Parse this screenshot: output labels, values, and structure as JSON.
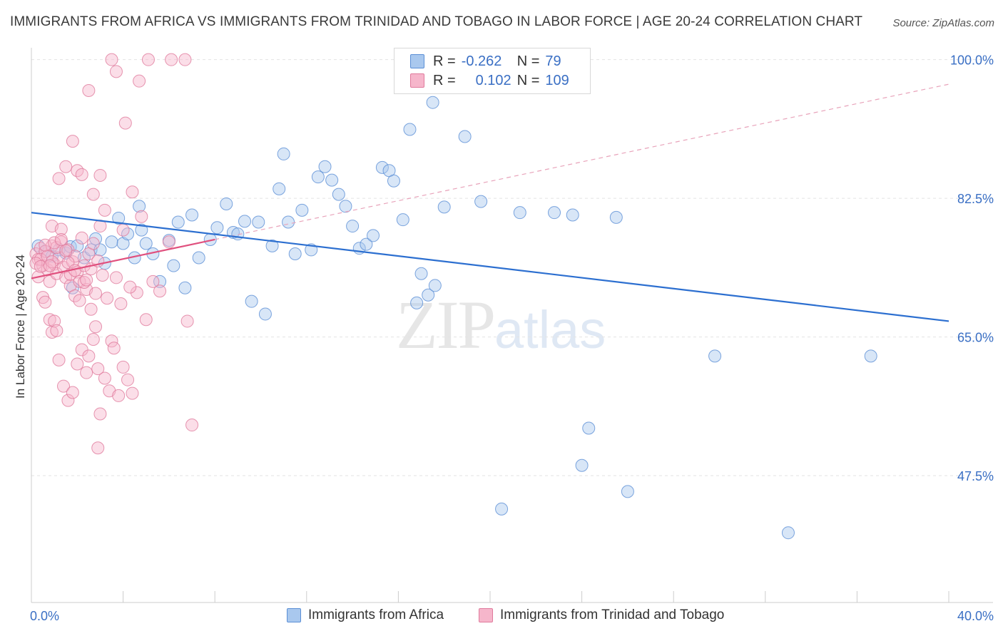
{
  "title": "IMMIGRANTS FROM AFRICA VS IMMIGRANTS FROM TRINIDAD AND TOBAGO IN LABOR FORCE | AGE 20-24 CORRELATION CHART",
  "source": "Source: ZipAtlas.com",
  "watermark": {
    "zip": "ZIP",
    "atlas": "atlas"
  },
  "legend": {
    "africa": {
      "r_label": "R =",
      "r_value": "-0.262",
      "n_label": "N =",
      "n_value": "79"
    },
    "trinidad": {
      "r_label": "R =",
      "r_value": "0.102",
      "n_label": "N =",
      "n_value": "109"
    }
  },
  "colors": {
    "africa_fill": "#a9c8ee",
    "africa_stroke": "#5b8fd6",
    "africa_line": "#2c6fd0",
    "trinidad_fill": "#f6b6cb",
    "trinidad_stroke": "#e07a9c",
    "trinidad_line": "#e0507e",
    "tick_label": "#3a6fc4",
    "grid": "#e3e3e3"
  },
  "chart_data": {
    "type": "scatter",
    "title": "IMMIGRANTS FROM AFRICA VS IMMIGRANTS FROM TRINIDAD AND TOBAGO IN LABOR FORCE | AGE 20-24 CORRELATION CHART",
    "xlabel": "",
    "ylabel": "In Labor Force | Age 20-24",
    "xlim": [
      0,
      40
    ],
    "ylim": [
      31.5,
      101.5
    ],
    "x_tick_labels": [
      "0.0%",
      "40.0%"
    ],
    "y_ticks": [
      47.5,
      65.0,
      82.5,
      100.0
    ],
    "y_tick_labels": [
      "47.5%",
      "65.0%",
      "82.5%",
      "100.0%"
    ],
    "grid": true,
    "legend_position": "top-center",
    "series": [
      {
        "name": "Immigrants from Africa",
        "trend": {
          "x": [
            0,
            40
          ],
          "y": [
            80.7,
            67.0
          ]
        },
        "points": [
          [
            0.3,
            76.5
          ],
          [
            0.6,
            75.8
          ],
          [
            0.9,
            75.2
          ],
          [
            1.2,
            76.0
          ],
          [
            1.5,
            75.6
          ],
          [
            1.7,
            76.4
          ],
          [
            1.8,
            71.2
          ],
          [
            2.3,
            75.0
          ],
          [
            2.6,
            76.0
          ],
          [
            2.8,
            77.4
          ],
          [
            3.2,
            74.3
          ],
          [
            3.5,
            77.0
          ],
          [
            3.8,
            80.0
          ],
          [
            4.0,
            76.8
          ],
          [
            4.2,
            78.0
          ],
          [
            4.5,
            75.0
          ],
          [
            4.8,
            78.5
          ],
          [
            5.0,
            76.8
          ],
          [
            5.3,
            75.5
          ],
          [
            5.6,
            72.0
          ],
          [
            6.0,
            77.2
          ],
          [
            6.2,
            74.0
          ],
          [
            6.4,
            79.5
          ],
          [
            6.7,
            71.2
          ],
          [
            7.0,
            80.4
          ],
          [
            7.3,
            75.0
          ],
          [
            7.8,
            77.3
          ],
          [
            8.1,
            78.8
          ],
          [
            8.5,
            81.8
          ],
          [
            8.8,
            78.2
          ],
          [
            9.0,
            78.0
          ],
          [
            9.3,
            79.6
          ],
          [
            9.6,
            69.5
          ],
          [
            9.9,
            79.5
          ],
          [
            10.2,
            67.9
          ],
          [
            10.5,
            76.5
          ],
          [
            10.8,
            83.7
          ],
          [
            11.0,
            88.1
          ],
          [
            11.2,
            79.5
          ],
          [
            11.5,
            75.5
          ],
          [
            11.8,
            81.0
          ],
          [
            12.2,
            76.0
          ],
          [
            12.5,
            85.2
          ],
          [
            12.8,
            86.5
          ],
          [
            13.1,
            84.8
          ],
          [
            13.4,
            83.0
          ],
          [
            13.7,
            81.5
          ],
          [
            14.0,
            79.0
          ],
          [
            14.3,
            76.2
          ],
          [
            14.6,
            76.7
          ],
          [
            14.9,
            77.8
          ],
          [
            15.3,
            86.4
          ],
          [
            15.6,
            86.0
          ],
          [
            15.8,
            84.7
          ],
          [
            16.2,
            79.8
          ],
          [
            16.5,
            91.2
          ],
          [
            16.8,
            69.3
          ],
          [
            17.0,
            73.0
          ],
          [
            17.3,
            70.3
          ],
          [
            17.6,
            71.5
          ],
          [
            17.5,
            94.6
          ],
          [
            18.0,
            81.4
          ],
          [
            18.9,
            90.3
          ],
          [
            19.6,
            82.1
          ],
          [
            21.3,
            80.7
          ],
          [
            22.8,
            80.7
          ],
          [
            23.6,
            80.4
          ],
          [
            25.5,
            80.1
          ],
          [
            24.3,
            53.5
          ],
          [
            24.0,
            48.8
          ],
          [
            26.0,
            45.5
          ],
          [
            29.8,
            62.6
          ],
          [
            33.0,
            40.3
          ],
          [
            36.6,
            62.6
          ],
          [
            20.5,
            43.3
          ],
          [
            22.0,
            100.2
          ],
          [
            4.7,
            81.5
          ],
          [
            2.0,
            76.5
          ],
          [
            3.0,
            76.0
          ]
        ]
      },
      {
        "name": "Immigrants from Trinidad and Tobago",
        "trend": {
          "x": [
            0,
            8
          ],
          "y": [
            72.4,
            77.3
          ]
        },
        "points": [
          [
            0.2,
            75.5
          ],
          [
            0.3,
            74.8
          ],
          [
            0.4,
            76.2
          ],
          [
            0.5,
            74.0
          ],
          [
            0.6,
            75.8
          ],
          [
            0.7,
            73.5
          ],
          [
            0.8,
            72.0
          ],
          [
            0.9,
            76.5
          ],
          [
            1.0,
            74.2
          ],
          [
            1.1,
            73.0
          ],
          [
            1.2,
            75.0
          ],
          [
            1.3,
            77.0
          ],
          [
            1.4,
            73.8
          ],
          [
            1.5,
            72.5
          ],
          [
            1.6,
            76.0
          ],
          [
            1.7,
            71.5
          ],
          [
            1.8,
            74.5
          ],
          [
            1.9,
            75.2
          ],
          [
            2.0,
            73.2
          ],
          [
            2.1,
            72.0
          ],
          [
            2.2,
            77.5
          ],
          [
            2.3,
            74.0
          ],
          [
            2.4,
            71.0
          ],
          [
            2.5,
            75.5
          ],
          [
            2.6,
            73.6
          ],
          [
            2.7,
            76.8
          ],
          [
            2.8,
            70.5
          ],
          [
            2.9,
            74.6
          ],
          [
            3.0,
            79.0
          ],
          [
            3.1,
            72.8
          ],
          [
            0.3,
            72.6
          ],
          [
            0.5,
            70.0
          ],
          [
            0.6,
            69.4
          ],
          [
            0.8,
            67.2
          ],
          [
            0.9,
            65.6
          ],
          [
            1.0,
            67.0
          ],
          [
            1.1,
            65.8
          ],
          [
            1.2,
            62.1
          ],
          [
            1.4,
            58.8
          ],
          [
            1.6,
            57.0
          ],
          [
            1.8,
            58.0
          ],
          [
            2.0,
            61.6
          ],
          [
            2.2,
            63.4
          ],
          [
            2.4,
            60.5
          ],
          [
            2.5,
            62.6
          ],
          [
            2.7,
            64.7
          ],
          [
            2.9,
            61.0
          ],
          [
            3.0,
            55.3
          ],
          [
            3.2,
            59.8
          ],
          [
            3.4,
            58.2
          ],
          [
            3.5,
            64.5
          ],
          [
            3.6,
            63.6
          ],
          [
            3.8,
            57.6
          ],
          [
            4.0,
            61.2
          ],
          [
            4.2,
            59.6
          ],
          [
            4.4,
            57.9
          ],
          [
            4.6,
            70.6
          ],
          [
            5.0,
            67.2
          ],
          [
            5.3,
            72.0
          ],
          [
            5.6,
            70.8
          ],
          [
            0.9,
            79.0
          ],
          [
            1.2,
            85.0
          ],
          [
            1.5,
            86.5
          ],
          [
            1.8,
            89.7
          ],
          [
            2.0,
            86.0
          ],
          [
            2.2,
            85.5
          ],
          [
            2.5,
            96.1
          ],
          [
            2.7,
            83.0
          ],
          [
            3.0,
            85.4
          ],
          [
            3.2,
            81.0
          ],
          [
            3.5,
            100.0
          ],
          [
            3.7,
            98.5
          ],
          [
            4.1,
            92.0
          ],
          [
            4.7,
            97.3
          ],
          [
            5.1,
            100.0
          ],
          [
            6.1,
            100.0
          ],
          [
            6.7,
            100.0
          ],
          [
            4.4,
            83.3
          ],
          [
            4.8,
            80.2
          ],
          [
            6.0,
            77.0
          ],
          [
            6.8,
            67.0
          ],
          [
            7.0,
            53.9
          ],
          [
            2.9,
            51.0
          ],
          [
            4.0,
            78.5
          ],
          [
            0.4,
            74.8
          ],
          [
            0.7,
            75.2
          ],
          [
            0.9,
            74.5
          ],
          [
            1.1,
            76.3
          ],
          [
            1.3,
            78.6
          ],
          [
            1.5,
            75.9
          ],
          [
            1.7,
            72.9
          ],
          [
            1.9,
            70.2
          ],
          [
            2.1,
            69.6
          ],
          [
            2.3,
            71.9
          ],
          [
            2.6,
            68.5
          ],
          [
            2.8,
            66.3
          ],
          [
            3.3,
            69.9
          ],
          [
            3.7,
            72.5
          ],
          [
            3.9,
            69.2
          ],
          [
            4.3,
            71.3
          ],
          [
            0.2,
            74.3
          ],
          [
            0.4,
            73.9
          ],
          [
            0.6,
            76.6
          ],
          [
            0.8,
            74.0
          ],
          [
            1.0,
            76.9
          ],
          [
            1.3,
            77.3
          ],
          [
            1.6,
            74.4
          ],
          [
            1.9,
            73.4
          ],
          [
            2.4,
            72.2
          ]
        ]
      }
    ]
  },
  "bottom_legend": {
    "africa_label": "Immigrants from Africa",
    "trinidad_label": "Immigrants from Trinidad and Tobago"
  }
}
